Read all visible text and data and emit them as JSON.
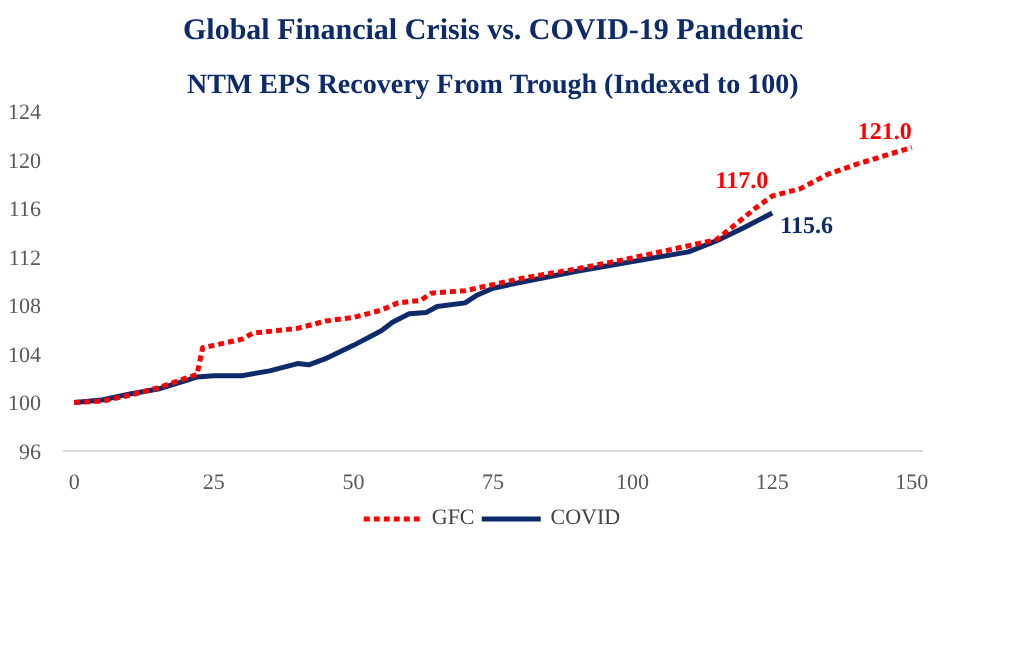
{
  "chart_data": {
    "type": "line",
    "title": "Global Financial Crisis vs. COVID-19 Pandemic",
    "subtitle": "NTM EPS Recovery From Trough (Indexed to 100)",
    "xlim": [
      -2,
      152
    ],
    "xticks": [
      0,
      25,
      50,
      75,
      100,
      125,
      150
    ],
    "ylim": [
      96,
      124
    ],
    "yticks": [
      96,
      100,
      104,
      108,
      112,
      116,
      120,
      124
    ],
    "grid": false,
    "legend": "bottom",
    "series": [
      {
        "name": "GFC",
        "color": "#ff0000",
        "line_style": "dashed",
        "x": [
          0,
          5,
          10,
          15,
          20,
          22,
          23,
          25,
          30,
          32,
          40,
          45,
          50,
          55,
          58,
          62,
          64,
          70,
          75,
          80,
          90,
          100,
          110,
          115,
          118,
          122,
          125,
          130,
          135,
          140,
          145,
          150
        ],
        "values": [
          100,
          100.1,
          100.6,
          101.2,
          102,
          102.3,
          104.5,
          104.7,
          105.2,
          105.7,
          106.1,
          106.7,
          107.0,
          107.6,
          108.2,
          108.4,
          109.0,
          109.2,
          109.7,
          110.2,
          111.0,
          111.9,
          112.9,
          113.4,
          114.5,
          116.0,
          117.0,
          117.6,
          118.8,
          119.6,
          120.3,
          121.0
        ],
        "value_labels": [
          null,
          null,
          null,
          null,
          null,
          null,
          null,
          null,
          null,
          null,
          null,
          null,
          null,
          null,
          null,
          null,
          null,
          null,
          null,
          null,
          null,
          null,
          null,
          null,
          null,
          null,
          "117.0",
          null,
          null,
          null,
          null,
          "121.0"
        ]
      },
      {
        "name": "COVID",
        "color": "#0d2a6b",
        "line_style": "solid",
        "x": [
          0,
          5,
          10,
          15,
          20,
          22,
          25,
          30,
          35,
          40,
          42,
          45,
          50,
          55,
          57,
          60,
          63,
          65,
          70,
          72,
          75,
          80,
          90,
          100,
          110,
          115,
          120,
          125
        ],
        "values": [
          100,
          100.2,
          100.7,
          101.1,
          101.8,
          102.1,
          102.2,
          102.2,
          102.6,
          103.2,
          103.1,
          103.6,
          104.7,
          105.9,
          106.6,
          107.3,
          107.4,
          107.9,
          108.2,
          108.8,
          109.4,
          109.9,
          110.8,
          111.6,
          112.4,
          113.3,
          114.4,
          115.6
        ],
        "value_labels": [
          null,
          null,
          null,
          null,
          null,
          null,
          null,
          null,
          null,
          null,
          null,
          null,
          null,
          null,
          null,
          null,
          null,
          null,
          null,
          null,
          null,
          null,
          null,
          null,
          null,
          null,
          null,
          "115.6"
        ]
      }
    ]
  }
}
